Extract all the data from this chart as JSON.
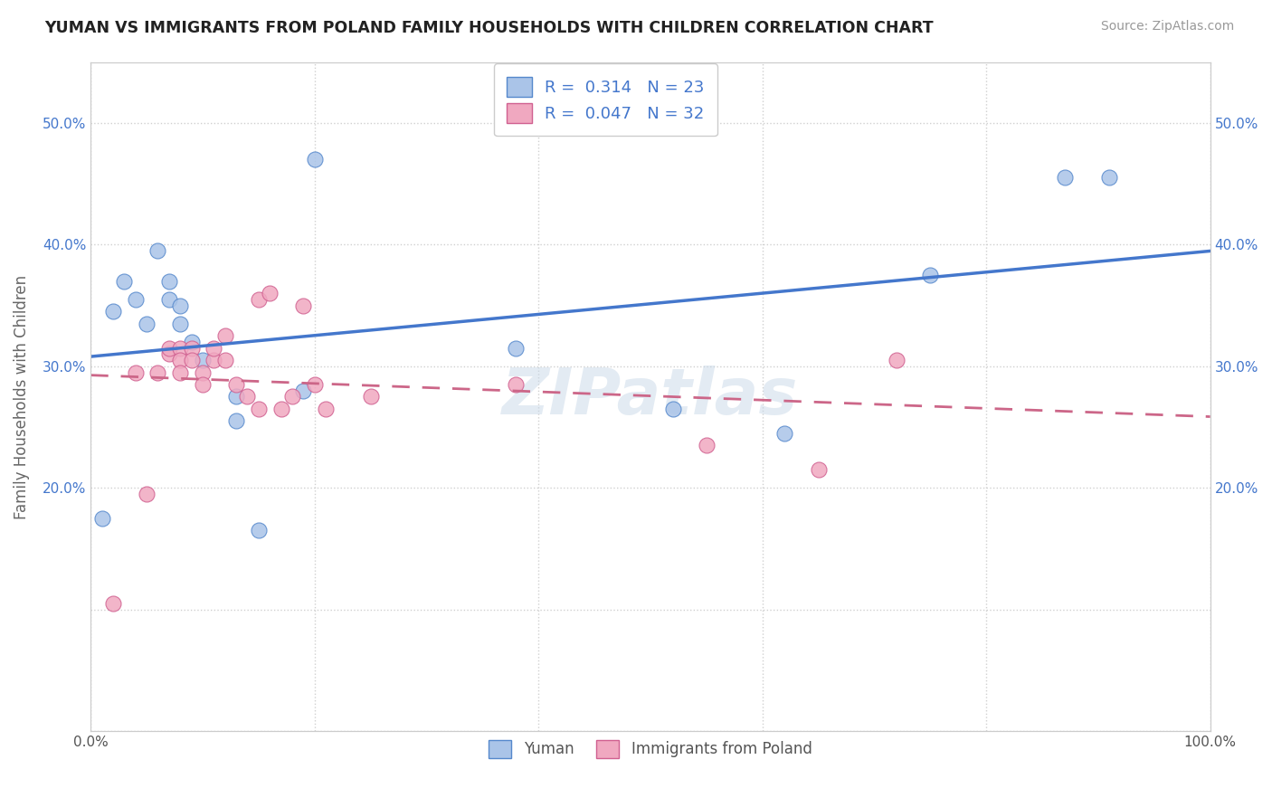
{
  "title": "YUMAN VS IMMIGRANTS FROM POLAND FAMILY HOUSEHOLDS WITH CHILDREN CORRELATION CHART",
  "source": "Source: ZipAtlas.com",
  "ylabel": "Family Households with Children",
  "xlim": [
    0.0,
    1.0
  ],
  "ylim": [
    0.0,
    0.55
  ],
  "xticks": [
    0.0,
    0.2,
    0.4,
    0.6,
    0.8,
    1.0
  ],
  "xticklabels": [
    "0.0%",
    "",
    "",
    "",
    "",
    "100.0%"
  ],
  "yticks": [
    0.0,
    0.1,
    0.2,
    0.3,
    0.4,
    0.5
  ],
  "yticklabels": [
    "",
    "",
    "20.0%",
    "30.0%",
    "40.0%",
    "50.0%"
  ],
  "right_yticks": [
    0.2,
    0.3,
    0.4,
    0.5
  ],
  "right_yticklabels": [
    "20.0%",
    "30.0%",
    "40.0%",
    "50.0%"
  ],
  "yuman_color": "#aac4e8",
  "poland_color": "#f0a8c0",
  "yuman_edge_color": "#5588cc",
  "poland_edge_color": "#d06090",
  "yuman_line_color": "#4477cc",
  "poland_line_color": "#cc6688",
  "legend_r_yuman": "0.314",
  "legend_n_yuman": "23",
  "legend_r_poland": "0.047",
  "legend_n_poland": "32",
  "legend_text_color": "#4477cc",
  "yuman_x": [
    0.01,
    0.02,
    0.03,
    0.04,
    0.05,
    0.06,
    0.07,
    0.07,
    0.08,
    0.08,
    0.09,
    0.1,
    0.13,
    0.13,
    0.15,
    0.19,
    0.2,
    0.38,
    0.52,
    0.62,
    0.75,
    0.87,
    0.91
  ],
  "yuman_y": [
    0.175,
    0.345,
    0.37,
    0.355,
    0.335,
    0.395,
    0.37,
    0.355,
    0.35,
    0.335,
    0.32,
    0.305,
    0.275,
    0.255,
    0.165,
    0.28,
    0.47,
    0.315,
    0.265,
    0.245,
    0.375,
    0.455,
    0.455
  ],
  "poland_x": [
    0.02,
    0.04,
    0.05,
    0.06,
    0.07,
    0.07,
    0.08,
    0.08,
    0.08,
    0.09,
    0.09,
    0.1,
    0.1,
    0.11,
    0.11,
    0.12,
    0.12,
    0.13,
    0.14,
    0.15,
    0.15,
    0.16,
    0.17,
    0.18,
    0.19,
    0.2,
    0.21,
    0.25,
    0.38,
    0.55,
    0.65,
    0.72
  ],
  "poland_y": [
    0.105,
    0.295,
    0.195,
    0.295,
    0.31,
    0.315,
    0.315,
    0.305,
    0.295,
    0.315,
    0.305,
    0.295,
    0.285,
    0.305,
    0.315,
    0.325,
    0.305,
    0.285,
    0.275,
    0.355,
    0.265,
    0.36,
    0.265,
    0.275,
    0.35,
    0.285,
    0.265,
    0.275,
    0.285,
    0.235,
    0.215,
    0.305
  ],
  "watermark": "ZIPatlas",
  "background_color": "#ffffff",
  "grid_color": "#d0d0d0",
  "grid_style": ":"
}
